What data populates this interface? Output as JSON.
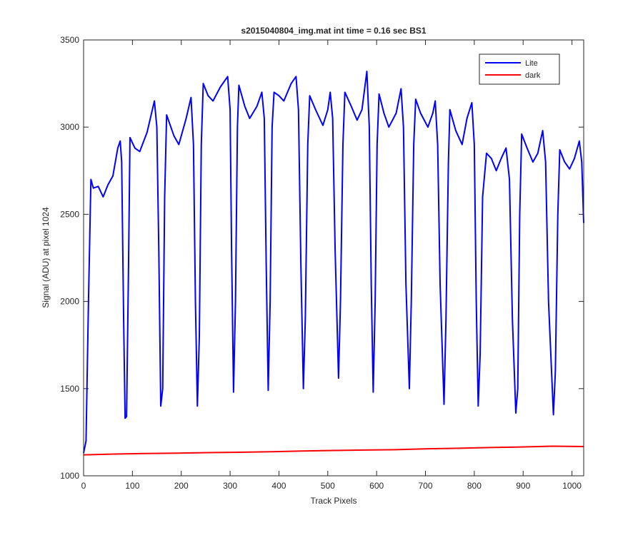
{
  "chart_data": {
    "type": "line",
    "title": "s2015040804_img.mat int time = 0.16 sec   BS1",
    "x_label": "Track Pixels",
    "y_label": "Signal (ADU) at pixel 1024",
    "xlim": [
      0,
      1024
    ],
    "xticks": [
      0,
      100,
      200,
      300,
      400,
      500,
      600,
      700,
      800,
      900,
      1000
    ],
    "ylim": [
      1000,
      3500
    ],
    "yticks": [
      1000,
      1500,
      2000,
      2500,
      3000,
      3500
    ],
    "legend": "northeast",
    "series": [
      {
        "name": "Lite",
        "color": "#0000ff",
        "x": [
          0,
          5,
          10,
          15,
          20,
          30,
          40,
          50,
          60,
          70,
          75,
          78,
          82,
          85,
          88,
          92,
          95,
          105,
          115,
          130,
          145,
          150,
          154,
          158,
          162,
          166,
          170,
          185,
          195,
          210,
          220,
          225,
          229,
          233,
          237,
          241,
          245,
          255,
          265,
          280,
          295,
          300,
          303,
          307,
          311,
          315,
          318,
          330,
          340,
          355,
          365,
          370,
          374,
          378,
          382,
          386,
          390,
          400,
          410,
          425,
          435,
          440,
          445,
          450,
          454,
          459,
          463,
          475,
          490,
          500,
          505,
          510,
          515,
          522,
          526,
          531,
          535,
          548,
          560,
          570,
          580,
          585,
          589,
          593,
          597,
          601,
          605,
          615,
          625,
          640,
          650,
          655,
          660,
          667,
          671,
          676,
          680,
          690,
          705,
          715,
          720,
          725,
          730,
          738,
          742,
          747,
          750,
          762,
          775,
          785,
          795,
          800,
          804,
          808,
          812,
          817,
          825,
          835,
          845,
          855,
          865,
          872,
          878,
          885,
          889,
          893,
          897,
          908,
          920,
          930,
          940,
          946,
          952,
          962,
          966,
          971,
          975,
          985,
          995,
          1005,
          1015,
          1020,
          1024
        ],
        "values": [
          1130,
          1200,
          2000,
          2700,
          2650,
          2660,
          2600,
          2670,
          2720,
          2880,
          2920,
          2800,
          1900,
          1330,
          1340,
          2200,
          2940,
          2880,
          2860,
          2970,
          3150,
          3000,
          2300,
          1400,
          1500,
          2600,
          3070,
          2950,
          2900,
          3050,
          3170,
          2900,
          2000,
          1400,
          1800,
          2900,
          3250,
          3180,
          3150,
          3230,
          3290,
          3100,
          2300,
          1480,
          2000,
          3000,
          3240,
          3120,
          3050,
          3120,
          3200,
          3050,
          2200,
          1490,
          2000,
          3000,
          3200,
          3180,
          3150,
          3250,
          3290,
          3100,
          2200,
          1500,
          1900,
          2900,
          3180,
          3100,
          3010,
          3100,
          3200,
          3050,
          2300,
          1560,
          2000,
          2900,
          3200,
          3120,
          3040,
          3100,
          3320,
          3000,
          2100,
          1480,
          2000,
          2900,
          3190,
          3080,
          3000,
          3080,
          3220,
          3000,
          2100,
          1500,
          2000,
          2900,
          3160,
          3080,
          3000,
          3080,
          3150,
          2900,
          2100,
          1410,
          1900,
          2800,
          3100,
          2980,
          2900,
          3050,
          3140,
          2900,
          2000,
          1400,
          1700,
          2600,
          2850,
          2820,
          2750,
          2820,
          2880,
          2700,
          1900,
          1360,
          1500,
          2500,
          2960,
          2880,
          2800,
          2850,
          2980,
          2800,
          2000,
          1350,
          1600,
          2500,
          2870,
          2800,
          2760,
          2820,
          2920,
          2800,
          2450
        ]
      },
      {
        "name": "dark",
        "color": "#ff0000",
        "x": [
          0,
          64,
          128,
          192,
          256,
          320,
          384,
          448,
          512,
          576,
          640,
          704,
          768,
          832,
          896,
          960,
          1024
        ],
        "values": [
          1120,
          1125,
          1128,
          1130,
          1133,
          1135,
          1138,
          1142,
          1145,
          1148,
          1150,
          1155,
          1158,
          1162,
          1165,
          1170,
          1168
        ]
      }
    ]
  }
}
